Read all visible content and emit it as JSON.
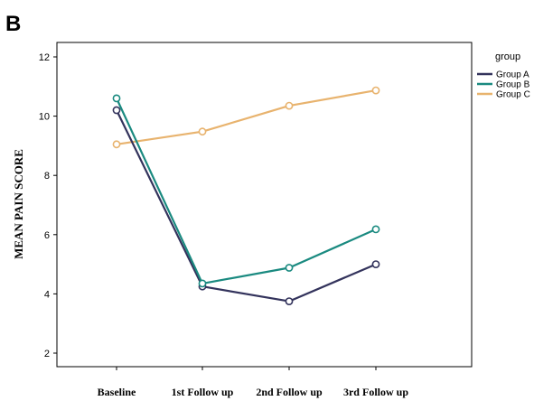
{
  "panel_label": "B",
  "chart_data": {
    "type": "line",
    "categories": [
      "Baseline",
      "1st Follow up",
      "2nd Follow up",
      "3rd Follow up"
    ],
    "series": [
      {
        "name": "Group A",
        "values": [
          10.2,
          4.25,
          3.75,
          5.0
        ],
        "color": "#33335c"
      },
      {
        "name": "Group B",
        "values": [
          10.6,
          4.35,
          4.88,
          6.18
        ],
        "color": "#1a8a80"
      },
      {
        "name": "Group C",
        "values": [
          9.05,
          9.48,
          10.35,
          10.87
        ],
        "color": "#e8b36e"
      }
    ],
    "title": "",
    "xlabel": "",
    "ylabel": "MEAN PAIN SCORE",
    "ylim": [
      1.5,
      12.5
    ],
    "yticks": [
      2,
      4,
      6,
      8,
      10,
      12
    ],
    "grid": false,
    "marker": "open-circle",
    "legend": {
      "title": "group",
      "placement": "right"
    }
  }
}
